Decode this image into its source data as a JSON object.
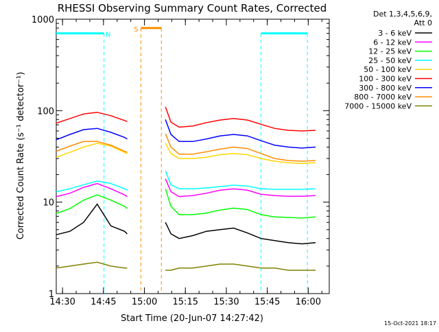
{
  "chart_data": {
    "type": "line",
    "title": "RHESSI Observing Summary Count Rates, Corrected",
    "xlabel": "Start Time (20-Jun-07 14:27:42)",
    "ylabel": "Corrected Count Rate (s⁻¹ detector⁻¹)",
    "y_scale": "log",
    "ylim": [
      1,
      1000
    ],
    "xlim_minutes": [
      0,
      100
    ],
    "x_tick_labels": [
      "14:30",
      "14:45",
      "15:00",
      "15:15",
      "15:30",
      "15:45",
      "16:00"
    ],
    "x_tick_minutes": [
      2.3,
      17.3,
      32.3,
      47.3,
      62.3,
      77.3,
      92.3
    ],
    "y_tick_labels": [
      "1",
      "10",
      "100",
      "1000"
    ],
    "y_tick_values": [
      1,
      10,
      100,
      1000
    ],
    "legend": {
      "placement": "right",
      "header_line1": "Det 1,3,4,5,6,9,",
      "header_line2": "Att 0"
    },
    "x_minutes": [
      0,
      5,
      10,
      15,
      20,
      25,
      26,
      33,
      38,
      39,
      40,
      42,
      45,
      50,
      55,
      60,
      65,
      70,
      75,
      80,
      85,
      90,
      95
    ],
    "series": [
      {
        "name": "3 - 6 keV",
        "color": "#000000",
        "values": [
          4.4,
          4.8,
          6.0,
          9.5,
          5.5,
          4.8,
          4.5,
          null,
          null,
          null,
          6,
          4.5,
          4.0,
          4.3,
          4.8,
          5.0,
          5.2,
          4.6,
          4.0,
          3.8,
          3.6,
          3.5,
          3.6
        ]
      },
      {
        "name": "6 - 12 keV",
        "color": "#ff00ff",
        "values": [
          11.5,
          12.5,
          14.5,
          16,
          14,
          12,
          11.5,
          null,
          null,
          null,
          18,
          13,
          11.5,
          11.8,
          12.5,
          13.5,
          14.0,
          13.5,
          12.2,
          11.8,
          11.6,
          11.6,
          11.8
        ]
      },
      {
        "name": "12 - 25 keV",
        "color": "#00ff00",
        "values": [
          7.5,
          8.5,
          10.5,
          12,
          10.5,
          9,
          8.5,
          null,
          null,
          null,
          14,
          9,
          7.3,
          7.3,
          7.6,
          8.2,
          8.6,
          8.3,
          7.3,
          6.9,
          6.8,
          6.7,
          6.9
        ]
      },
      {
        "name": "25 - 50 keV",
        "color": "#00ffff",
        "values": [
          13,
          14,
          15.5,
          17,
          16,
          14,
          13.5,
          null,
          null,
          null,
          22,
          15.5,
          14.0,
          14.0,
          14.3,
          14.8,
          15.3,
          15.0,
          14.0,
          13.8,
          13.8,
          13.8,
          14.0
        ]
      },
      {
        "name": "50 - 100 keV",
        "color": "#ffd700",
        "values": [
          31,
          35,
          40,
          44,
          41,
          35,
          34,
          null,
          null,
          null,
          44,
          34,
          30,
          30,
          31,
          33,
          34,
          33,
          30,
          28,
          27,
          26.5,
          27
        ]
      },
      {
        "name": "100 - 300 keV",
        "color": "#ff0000",
        "values": [
          73,
          82,
          92,
          96,
          88,
          78,
          76,
          null,
          null,
          null,
          110,
          75,
          66,
          68,
          74,
          79,
          82,
          79,
          71,
          64,
          61,
          60,
          61
        ]
      },
      {
        "name": "300 - 800 keV",
        "color": "#0000ff",
        "values": [
          48,
          55,
          62,
          64,
          58,
          51,
          49,
          null,
          null,
          null,
          80,
          55,
          46,
          46,
          49,
          53,
          55,
          53,
          47,
          42,
          40,
          39,
          40
        ]
      },
      {
        "name": "800 - 7000 keV",
        "color": "#ff8c00",
        "values": [
          36,
          41,
          46,
          46,
          42,
          36,
          35,
          null,
          null,
          null,
          56,
          40,
          33.5,
          33.5,
          35.5,
          38,
          40,
          38.5,
          34,
          30,
          28.5,
          28,
          28.5
        ]
      },
      {
        "name": "7000 - 15000 keV",
        "color": "#808000",
        "values": [
          1.9,
          2.0,
          2.1,
          2.2,
          2.0,
          1.9,
          1.9,
          null,
          null,
          null,
          1.8,
          1.8,
          1.9,
          1.9,
          2.0,
          2.1,
          2.1,
          2.0,
          1.9,
          1.9,
          1.8,
          1.8,
          1.8
        ]
      }
    ],
    "annotations": [
      {
        "label": "N",
        "kind": "night",
        "color": "#00ffff",
        "start_minute": 0,
        "end_minute": 17.5,
        "level": 700
      },
      {
        "label": "",
        "kind": "night",
        "color": "#00ffff",
        "start_minute": 75,
        "end_minute": 92,
        "level": 700
      },
      {
        "label": "S",
        "kind": "saa",
        "color": "#ff8c00",
        "start_minute": 31,
        "end_minute": 38.5,
        "level": 800
      }
    ]
  },
  "footer_timestamp": "15-Oct-2021 18:17"
}
